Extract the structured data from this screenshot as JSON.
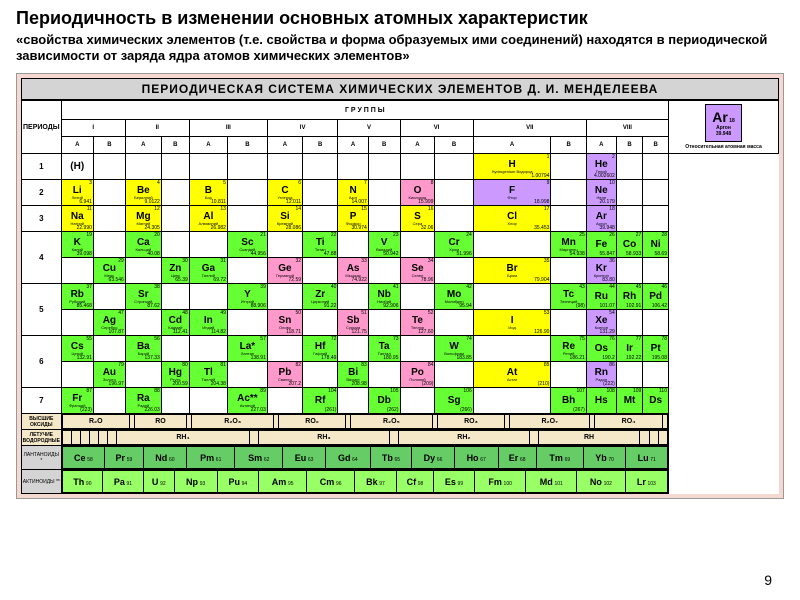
{
  "title": "Периодичность в изменении основных атомных характеристик",
  "subtitle": "«свойства химических элементов (т.е. свойства и форма образуемых ими соединений) находятся в периодической зависимости от заряда ядра атомов химических элементов»",
  "table_title": "ПЕРИОДИЧЕСКАЯ СИСТЕМА ХИМИЧЕСКИХ ЭЛЕМЕНТОВ Д. И. МЕНДЕЛЕЕВА",
  "periods_label": "ПЕРИОДЫ",
  "groups_label": "Г Р У П П Ы",
  "groups": [
    "I",
    "II",
    "III",
    "IV",
    "V",
    "VI",
    "VII",
    "VIII"
  ],
  "subgroups": [
    "A",
    "B",
    "A",
    "B",
    "A",
    "B",
    "A",
    "B",
    "A",
    "B",
    "A",
    "B",
    "A",
    "B",
    "A",
    "B"
  ],
  "legend_element": {
    "sym": "Ar",
    "num": "18",
    "mass": "39.948",
    "name": "Аргон"
  },
  "legend_text": "Относительная атомная масса",
  "page_number": "9",
  "periods": [
    {
      "n": "1",
      "cells": [
        {
          "sym": "(H)",
          "c": "white"
        },
        {
          "c": "white"
        },
        {
          "c": "white"
        },
        {
          "c": "white"
        },
        {
          "c": "white"
        },
        {
          "c": "white"
        },
        {
          "c": "white"
        },
        {
          "c": "white"
        },
        {
          "c": "white"
        },
        {
          "c": "white"
        },
        {
          "c": "white"
        },
        {
          "c": "white"
        },
        {
          "sym": "H",
          "num": "1",
          "mass": "1.00794",
          "name": "Hydrogenium Водород",
          "c": "yellow"
        },
        {
          "c": "white"
        },
        {
          "sym": "He",
          "num": "2",
          "mass": "4.002602",
          "name": "Гелий",
          "c": "purple"
        },
        {
          "c": "white"
        }
      ]
    },
    {
      "n": "2",
      "cells": [
        {
          "sym": "Li",
          "num": "3",
          "mass": "6.941",
          "name": "Литий",
          "c": "yellow"
        },
        {
          "c": "white"
        },
        {
          "sym": "Be",
          "num": "4",
          "mass": "9.0122",
          "name": "Бериллий",
          "c": "yellow"
        },
        {
          "c": "white"
        },
        {
          "sym": "B",
          "num": "5",
          "mass": "10.811",
          "name": "Бор",
          "c": "yellow"
        },
        {
          "c": "white"
        },
        {
          "sym": "C",
          "num": "6",
          "mass": "12.011",
          "name": "Углерод",
          "c": "yellow"
        },
        {
          "c": "white"
        },
        {
          "sym": "N",
          "num": "7",
          "mass": "14.007",
          "name": "Азот",
          "c": "yellow"
        },
        {
          "c": "white"
        },
        {
          "sym": "O",
          "num": "8",
          "mass": "15.999",
          "name": "Кислород",
          "c": "pink"
        },
        {
          "c": "white"
        },
        {
          "sym": "F",
          "num": "9",
          "mass": "18.998",
          "name": "Фтор",
          "c": "purple"
        },
        {
          "c": "white"
        },
        {
          "sym": "Ne",
          "num": "10",
          "mass": "20.179",
          "name": "Неон",
          "c": "purple"
        },
        {
          "c": "white"
        }
      ]
    },
    {
      "n": "3",
      "cells": [
        {
          "sym": "Na",
          "num": "11",
          "mass": "22.990",
          "name": "Натрий",
          "c": "yellow"
        },
        {
          "c": "white"
        },
        {
          "sym": "Mg",
          "num": "12",
          "mass": "24.305",
          "name": "Магний",
          "c": "yellow"
        },
        {
          "c": "white"
        },
        {
          "sym": "Al",
          "num": "13",
          "mass": "26.982",
          "name": "Алюминий",
          "c": "yellow"
        },
        {
          "c": "white"
        },
        {
          "sym": "Si",
          "num": "14",
          "mass": "28.086",
          "name": "Кремний",
          "c": "yellow"
        },
        {
          "c": "white"
        },
        {
          "sym": "P",
          "num": "15",
          "mass": "30.974",
          "name": "Фосфор",
          "c": "yellow"
        },
        {
          "c": "white"
        },
        {
          "sym": "S",
          "num": "16",
          "mass": "32.06",
          "name": "Сера",
          "c": "yellow"
        },
        {
          "c": "white"
        },
        {
          "sym": "Cl",
          "num": "17",
          "mass": "35.453",
          "name": "Хлор",
          "c": "yellow"
        },
        {
          "c": "white"
        },
        {
          "sym": "Ar",
          "num": "18",
          "mass": "39.948",
          "name": "Аргон",
          "c": "purple"
        },
        {
          "c": "white"
        }
      ]
    },
    {
      "n": "4",
      "split": true,
      "rows": [
        [
          {
            "sym": "K",
            "num": "19",
            "mass": "39.098",
            "name": "Калий",
            "c": "lime"
          },
          {
            "c": "white"
          },
          {
            "sym": "Ca",
            "num": "20",
            "mass": "40.08",
            "name": "Кальций",
            "c": "lime"
          },
          {
            "c": "white"
          },
          {
            "c": "white"
          },
          {
            "sym": "Sc",
            "num": "21",
            "mass": "44.956",
            "name": "Скандий",
            "c": "lime"
          },
          {
            "c": "white"
          },
          {
            "sym": "Ti",
            "num": "22",
            "mass": "47.88",
            "name": "Титан",
            "c": "lime"
          },
          {
            "c": "white"
          },
          {
            "sym": "V",
            "num": "23",
            "mass": "50.942",
            "name": "Ванадий",
            "c": "lime"
          },
          {
            "c": "white"
          },
          {
            "sym": "Cr",
            "num": "24",
            "mass": "51.996",
            "name": "Хром",
            "c": "lime"
          },
          {
            "c": "white"
          },
          {
            "sym": "Mn",
            "num": "25",
            "mass": "54.938",
            "name": "Марганец",
            "c": "lime"
          },
          {
            "sym": "Fe",
            "num": "26",
            "mass": "55.847",
            "c": "lime"
          },
          {
            "sym": "Co",
            "num": "27",
            "mass": "58.933",
            "c": "lime"
          },
          {
            "sym": "Ni",
            "num": "28",
            "mass": "58.69",
            "c": "lime"
          }
        ],
        [
          {
            "c": "white"
          },
          {
            "sym": "Cu",
            "num": "29",
            "mass": "63.546",
            "name": "Медь",
            "c": "lime"
          },
          {
            "c": "white"
          },
          {
            "sym": "Zn",
            "num": "30",
            "mass": "65.39",
            "name": "Цинк",
            "c": "lime"
          },
          {
            "sym": "Ga",
            "num": "31",
            "mass": "69.72",
            "name": "Галлий",
            "c": "lime"
          },
          {
            "c": "white"
          },
          {
            "sym": "Ge",
            "num": "32",
            "mass": "72.59",
            "name": "Германий",
            "c": "pink"
          },
          {
            "c": "white"
          },
          {
            "sym": "As",
            "num": "33",
            "mass": "74.922",
            "name": "Мышьяк",
            "c": "pink"
          },
          {
            "c": "white"
          },
          {
            "sym": "Se",
            "num": "34",
            "mass": "78.96",
            "name": "Селен",
            "c": "pink"
          },
          {
            "c": "white"
          },
          {
            "sym": "Br",
            "num": "35",
            "mass": "79.904",
            "name": "Бром",
            "c": "yellow"
          },
          {
            "c": "white"
          },
          {
            "sym": "Kr",
            "num": "36",
            "mass": "83.80",
            "name": "Криптон",
            "c": "purple"
          },
          {
            "c": "white"
          },
          {
            "c": "white"
          }
        ]
      ]
    },
    {
      "n": "5",
      "split": true,
      "rows": [
        [
          {
            "sym": "Rb",
            "num": "37",
            "mass": "85.468",
            "name": "Рубидий",
            "c": "lime"
          },
          {
            "c": "white"
          },
          {
            "sym": "Sr",
            "num": "38",
            "mass": "87.62",
            "name": "Стронций",
            "c": "lime"
          },
          {
            "c": "white"
          },
          {
            "c": "white"
          },
          {
            "sym": "Y",
            "num": "39",
            "mass": "88.906",
            "name": "Иттрий",
            "c": "lime"
          },
          {
            "c": "white"
          },
          {
            "sym": "Zr",
            "num": "40",
            "mass": "91.22",
            "name": "Цирконий",
            "c": "lime"
          },
          {
            "c": "white"
          },
          {
            "sym": "Nb",
            "num": "41",
            "mass": "92.906",
            "name": "Ниобий",
            "c": "lime"
          },
          {
            "c": "white"
          },
          {
            "sym": "Mo",
            "num": "42",
            "mass": "95.94",
            "name": "Молибден",
            "c": "lime"
          },
          {
            "c": "white"
          },
          {
            "sym": "Tc",
            "num": "43",
            "mass": "(98)",
            "name": "Технеций",
            "c": "lime"
          },
          {
            "sym": "Ru",
            "num": "44",
            "mass": "101.07",
            "c": "lime"
          },
          {
            "sym": "Rh",
            "num": "45",
            "mass": "102.91",
            "c": "lime"
          },
          {
            "sym": "Pd",
            "num": "46",
            "mass": "106.42",
            "c": "lime"
          }
        ],
        [
          {
            "c": "white"
          },
          {
            "sym": "Ag",
            "num": "47",
            "mass": "107.87",
            "name": "Серебро",
            "c": "lime"
          },
          {
            "c": "white"
          },
          {
            "sym": "Cd",
            "num": "48",
            "mass": "112.41",
            "name": "Кадмий",
            "c": "lime"
          },
          {
            "sym": "In",
            "num": "49",
            "mass": "114.82",
            "name": "Индий",
            "c": "lime"
          },
          {
            "c": "white"
          },
          {
            "sym": "Sn",
            "num": "50",
            "mass": "118.71",
            "name": "Олово",
            "c": "pink"
          },
          {
            "c": "white"
          },
          {
            "sym": "Sb",
            "num": "51",
            "mass": "121.75",
            "name": "Сурьма",
            "c": "pink"
          },
          {
            "c": "white"
          },
          {
            "sym": "Te",
            "num": "52",
            "mass": "127.60",
            "name": "Теллур",
            "c": "pink"
          },
          {
            "c": "white"
          },
          {
            "sym": "I",
            "num": "53",
            "mass": "126.90",
            "name": "Иод",
            "c": "yellow"
          },
          {
            "c": "white"
          },
          {
            "sym": "Xe",
            "num": "54",
            "mass": "131.29",
            "name": "Ксенон",
            "c": "purple"
          },
          {
            "c": "white"
          },
          {
            "c": "white"
          }
        ]
      ]
    },
    {
      "n": "6",
      "split": true,
      "rows": [
        [
          {
            "sym": "Cs",
            "num": "55",
            "mass": "132.91",
            "name": "Цезий",
            "c": "lime"
          },
          {
            "c": "white"
          },
          {
            "sym": "Ba",
            "num": "56",
            "mass": "137.33",
            "name": "Барий",
            "c": "lime"
          },
          {
            "c": "white"
          },
          {
            "c": "white"
          },
          {
            "sym": "La*",
            "num": "57",
            "mass": "138.91",
            "name": "Лантан",
            "c": "lime"
          },
          {
            "c": "white"
          },
          {
            "sym": "Hf",
            "num": "72",
            "mass": "178.49",
            "name": "Гафний",
            "c": "lime"
          },
          {
            "c": "white"
          },
          {
            "sym": "Ta",
            "num": "73",
            "mass": "180.95",
            "name": "Тантал",
            "c": "lime"
          },
          {
            "c": "white"
          },
          {
            "sym": "W",
            "num": "74",
            "mass": "183.85",
            "name": "Вольфрам",
            "c": "lime"
          },
          {
            "c": "white"
          },
          {
            "sym": "Re",
            "num": "75",
            "mass": "186.21",
            "name": "Рений",
            "c": "lime"
          },
          {
            "sym": "Os",
            "num": "76",
            "mass": "190.2",
            "c": "lime"
          },
          {
            "sym": "Ir",
            "num": "77",
            "mass": "192.22",
            "c": "lime"
          },
          {
            "sym": "Pt",
            "num": "78",
            "mass": "195.08",
            "c": "lime"
          }
        ],
        [
          {
            "c": "white"
          },
          {
            "sym": "Au",
            "num": "79",
            "mass": "196.97",
            "name": "Золото",
            "c": "lime"
          },
          {
            "c": "white"
          },
          {
            "sym": "Hg",
            "num": "80",
            "mass": "200.59",
            "name": "Ртуть",
            "c": "lime"
          },
          {
            "sym": "Tl",
            "num": "81",
            "mass": "204.38",
            "name": "Таллий",
            "c": "lime"
          },
          {
            "c": "white"
          },
          {
            "sym": "Pb",
            "num": "82",
            "mass": "207.2",
            "name": "Свинец",
            "c": "pink"
          },
          {
            "c": "white"
          },
          {
            "sym": "Bi",
            "num": "83",
            "mass": "208.98",
            "name": "Висмут",
            "c": "lime"
          },
          {
            "c": "white"
          },
          {
            "sym": "Po",
            "num": "84",
            "mass": "(209)",
            "name": "Полоний",
            "c": "pink"
          },
          {
            "c": "white"
          },
          {
            "sym": "At",
            "num": "85",
            "mass": "(210)",
            "name": "Астат",
            "c": "yellow"
          },
          {
            "c": "white"
          },
          {
            "sym": "Rn",
            "num": "86",
            "mass": "(222)",
            "name": "Радон",
            "c": "purple"
          },
          {
            "c": "white"
          },
          {
            "c": "white"
          }
        ]
      ]
    },
    {
      "n": "7",
      "cells": [
        {
          "sym": "Fr",
          "num": "87",
          "mass": "(223)",
          "name": "Франций",
          "c": "lime"
        },
        {
          "c": "white"
        },
        {
          "sym": "Ra",
          "num": "88",
          "mass": "226.03",
          "name": "Радий",
          "c": "lime"
        },
        {
          "c": "white"
        },
        {
          "c": "white"
        },
        {
          "sym": "Ac**",
          "num": "89",
          "mass": "227.03",
          "name": "Актиний",
          "c": "lime"
        },
        {
          "c": "white"
        },
        {
          "sym": "Rf",
          "num": "104",
          "mass": "(261)",
          "c": "lime"
        },
        {
          "c": "white"
        },
        {
          "sym": "Db",
          "num": "105",
          "mass": "(262)",
          "c": "lime"
        },
        {
          "c": "white"
        },
        {
          "sym": "Sg",
          "num": "106",
          "mass": "(266)",
          "c": "lime"
        },
        {
          "c": "white"
        },
        {
          "sym": "Bh",
          "num": "107",
          "mass": "(267)",
          "c": "lime"
        },
        {
          "sym": "Hs",
          "num": "108",
          "c": "lime"
        },
        {
          "sym": "Mt",
          "num": "109",
          "c": "lime"
        },
        {
          "sym": "Ds",
          "num": "110",
          "c": "lime"
        }
      ]
    }
  ],
  "oxides": {
    "label": "ВЫСШИЕ ОКСИДЫ",
    "formulas": [
      "R₂O",
      "",
      "RO",
      "",
      "R₂O₃",
      "",
      "RO₂",
      "",
      "R₂O₅",
      "",
      "RO₃",
      "",
      "R₂O₇",
      "",
      "RO₄",
      ""
    ]
  },
  "hydrides": {
    "label": "ЛЕТУЧИЕ ВОДОРОДНЫЕ",
    "formulas": [
      "",
      "",
      "",
      "",
      "",
      "",
      "RH₄",
      "",
      "RH₃",
      "",
      "RH₂",
      "",
      "RH",
      "",
      "",
      ""
    ]
  },
  "lanthanides": {
    "label": "ЛАНТАНОИДЫ *",
    "elements": [
      {
        "sym": "Ce",
        "num": "58"
      },
      {
        "sym": "Pr",
        "num": "59"
      },
      {
        "sym": "Nd",
        "num": "60"
      },
      {
        "sym": "Pm",
        "num": "61"
      },
      {
        "sym": "Sm",
        "num": "62"
      },
      {
        "sym": "Eu",
        "num": "63"
      },
      {
        "sym": "Gd",
        "num": "64"
      },
      {
        "sym": "Tb",
        "num": "65"
      },
      {
        "sym": "Dy",
        "num": "66"
      },
      {
        "sym": "Ho",
        "num": "67"
      },
      {
        "sym": "Er",
        "num": "68"
      },
      {
        "sym": "Tm",
        "num": "69"
      },
      {
        "sym": "Yb",
        "num": "70"
      },
      {
        "sym": "Lu",
        "num": "71"
      }
    ]
  },
  "actinides": {
    "label": "АКТИНОИДЫ **",
    "elements": [
      {
        "sym": "Th",
        "num": "90"
      },
      {
        "sym": "Pa",
        "num": "91"
      },
      {
        "sym": "U",
        "num": "92"
      },
      {
        "sym": "Np",
        "num": "93"
      },
      {
        "sym": "Pu",
        "num": "94"
      },
      {
        "sym": "Am",
        "num": "95"
      },
      {
        "sym": "Cm",
        "num": "96"
      },
      {
        "sym": "Bk",
        "num": "97"
      },
      {
        "sym": "Cf",
        "num": "98"
      },
      {
        "sym": "Es",
        "num": "99"
      },
      {
        "sym": "Fm",
        "num": "100"
      },
      {
        "sym": "Md",
        "num": "101"
      },
      {
        "sym": "No",
        "num": "102"
      },
      {
        "sym": "Lr",
        "num": "103"
      }
    ]
  }
}
